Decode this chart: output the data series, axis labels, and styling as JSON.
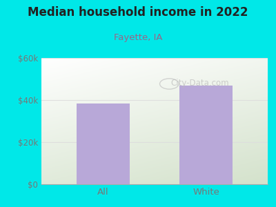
{
  "title": "Median household income in 2022",
  "subtitle": "Fayette, IA",
  "categories": [
    "All",
    "White"
  ],
  "values": [
    38500,
    47000
  ],
  "bar_color": "#b8a8d8",
  "bg_color": "#00e8e8",
  "title_color": "#222222",
  "subtitle_color": "#996688",
  "tick_label_color": "#777777",
  "ylim": [
    0,
    60000
  ],
  "yticks": [
    0,
    20000,
    40000,
    60000
  ],
  "ytick_labels": [
    "$0",
    "$20k",
    "$40k",
    "$60k"
  ],
  "watermark": "City-Data.com",
  "watermark_color": "#bbbbbb",
  "grid_color": "#dddddd"
}
